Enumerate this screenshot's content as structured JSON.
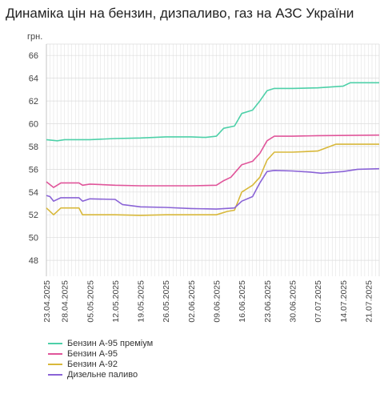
{
  "title": "Динаміка цін на бензин, дизпаливо, газ на АЗС України",
  "chart_data": {
    "type": "line",
    "ylabel": "грн.",
    "ylim": [
      46.6,
      67
    ],
    "yticks": [
      48,
      50,
      52,
      54,
      56,
      58,
      60,
      62,
      64,
      66
    ],
    "x_start": "23.04.2025",
    "x_end": "24.07.2025",
    "xtick_labels": [
      "23.04.2025",
      "28.04.2025",
      "05.05.2025",
      "12.05.2025",
      "19.05.2025",
      "26.05.2025",
      "02.06.2025",
      "09.06.2025",
      "16.06.2025",
      "23.06.2025",
      "30.06.2025",
      "07.07.2025",
      "14.07.2025",
      "21.07.2025"
    ],
    "grid": true,
    "legend_position": "bottom-left",
    "series": [
      {
        "name": "Бензин А-95 преміум",
        "color": "#4dd0a8",
        "points": [
          [
            "2025-04-23",
            58.6
          ],
          [
            "2025-04-26",
            58.5
          ],
          [
            "2025-04-28",
            58.6
          ],
          [
            "2025-05-05",
            58.6
          ],
          [
            "2025-05-12",
            58.7
          ],
          [
            "2025-05-19",
            58.75
          ],
          [
            "2025-05-26",
            58.85
          ],
          [
            "2025-06-02",
            58.85
          ],
          [
            "2025-06-06",
            58.8
          ],
          [
            "2025-06-09",
            58.9
          ],
          [
            "2025-06-11",
            59.6
          ],
          [
            "2025-06-14",
            59.8
          ],
          [
            "2025-06-16",
            60.9
          ],
          [
            "2025-06-19",
            61.2
          ],
          [
            "2025-06-21",
            62.0
          ],
          [
            "2025-06-23",
            62.9
          ],
          [
            "2025-06-25",
            63.1
          ],
          [
            "2025-06-30",
            63.1
          ],
          [
            "2025-07-07",
            63.15
          ],
          [
            "2025-07-14",
            63.3
          ],
          [
            "2025-07-16",
            63.6
          ],
          [
            "2025-07-24",
            63.6
          ]
        ]
      },
      {
        "name": "Бензин А-95",
        "color": "#e0559a",
        "points": [
          [
            "2025-04-23",
            54.9
          ],
          [
            "2025-04-25",
            54.4
          ],
          [
            "2025-04-27",
            54.8
          ],
          [
            "2025-05-02",
            54.8
          ],
          [
            "2025-05-03",
            54.6
          ],
          [
            "2025-05-05",
            54.7
          ],
          [
            "2025-05-12",
            54.6
          ],
          [
            "2025-05-19",
            54.55
          ],
          [
            "2025-05-26",
            54.55
          ],
          [
            "2025-06-02",
            54.55
          ],
          [
            "2025-06-09",
            54.6
          ],
          [
            "2025-06-11",
            55.0
          ],
          [
            "2025-06-13",
            55.3
          ],
          [
            "2025-06-16",
            56.4
          ],
          [
            "2025-06-19",
            56.7
          ],
          [
            "2025-06-21",
            57.4
          ],
          [
            "2025-06-23",
            58.5
          ],
          [
            "2025-06-25",
            58.9
          ],
          [
            "2025-06-30",
            58.9
          ],
          [
            "2025-07-07",
            58.95
          ],
          [
            "2025-07-24",
            59.0
          ]
        ]
      },
      {
        "name": "Бензин А-92",
        "color": "#d8b83a",
        "points": [
          [
            "2025-04-23",
            52.6
          ],
          [
            "2025-04-25",
            52.0
          ],
          [
            "2025-04-27",
            52.6
          ],
          [
            "2025-05-02",
            52.6
          ],
          [
            "2025-05-03",
            52.0
          ],
          [
            "2025-05-12",
            52.0
          ],
          [
            "2025-05-19",
            51.95
          ],
          [
            "2025-05-26",
            52.0
          ],
          [
            "2025-06-02",
            52.0
          ],
          [
            "2025-06-09",
            52.0
          ],
          [
            "2025-06-12",
            52.3
          ],
          [
            "2025-06-14",
            52.4
          ],
          [
            "2025-06-16",
            54.0
          ],
          [
            "2025-06-19",
            54.6
          ],
          [
            "2025-06-21",
            55.3
          ],
          [
            "2025-06-23",
            56.8
          ],
          [
            "2025-06-25",
            57.5
          ],
          [
            "2025-06-30",
            57.5
          ],
          [
            "2025-07-07",
            57.6
          ],
          [
            "2025-07-12",
            58.2
          ],
          [
            "2025-07-24",
            58.2
          ]
        ]
      },
      {
        "name": "Дизельне паливо",
        "color": "#8a63d6",
        "points": [
          [
            "2025-04-23",
            53.7
          ],
          [
            "2025-04-24",
            53.6
          ],
          [
            "2025-04-25",
            53.2
          ],
          [
            "2025-04-27",
            53.5
          ],
          [
            "2025-05-02",
            53.5
          ],
          [
            "2025-05-03",
            53.2
          ],
          [
            "2025-05-05",
            53.4
          ],
          [
            "2025-05-12",
            53.35
          ],
          [
            "2025-05-14",
            52.9
          ],
          [
            "2025-05-19",
            52.7
          ],
          [
            "2025-05-26",
            52.65
          ],
          [
            "2025-06-02",
            52.55
          ],
          [
            "2025-06-09",
            52.5
          ],
          [
            "2025-06-14",
            52.6
          ],
          [
            "2025-06-16",
            53.2
          ],
          [
            "2025-06-19",
            53.6
          ],
          [
            "2025-06-21",
            54.8
          ],
          [
            "2025-06-23",
            55.8
          ],
          [
            "2025-06-25",
            55.9
          ],
          [
            "2025-06-30",
            55.85
          ],
          [
            "2025-07-05",
            55.75
          ],
          [
            "2025-07-08",
            55.65
          ],
          [
            "2025-07-14",
            55.8
          ],
          [
            "2025-07-18",
            56.0
          ],
          [
            "2025-07-24",
            56.05
          ]
        ]
      }
    ]
  }
}
